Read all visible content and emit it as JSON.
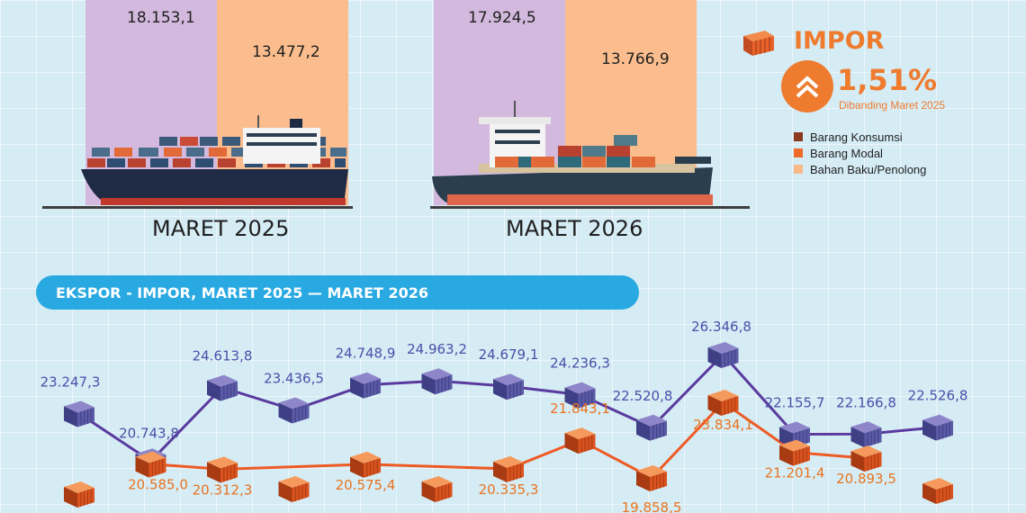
{
  "top_section": {
    "groups": [
      {
        "period": "MARET 2025",
        "values": [
          "18.153,1",
          "13.477,2"
        ]
      },
      {
        "period": "MARET 2026",
        "values": [
          "17.924,5",
          "13.766,9"
        ]
      }
    ],
    "colors": {
      "bar1": "#d2b9dd",
      "bar2": "#fbbd8e"
    }
  },
  "impor_panel": {
    "title": "IMPOR",
    "change": "1,51%",
    "comparison": "Dibanding Maret 2025",
    "icon": "chevrons-up-icon",
    "legend": [
      {
        "label": "Barang Konsumsi",
        "color": "#8b3a1e"
      },
      {
        "label": "Barang Modal",
        "color": "#ee6a2b"
      },
      {
        "label": "Bahan Baku/Penolong",
        "color": "#f9b98a"
      }
    ]
  },
  "banner": {
    "title": "EKSPOR - IMPOR, MARET 2025 — MARET 2026"
  },
  "chart_data": {
    "type": "line",
    "series": [
      {
        "color": "#5a3a9e",
        "values": [
          23247.3,
          20743.8,
          24613.8,
          23436.5,
          24748.9,
          24963.2,
          24679.1,
          24236.3,
          22520.8,
          26346.8,
          22155.7,
          22166.8,
          22526.8
        ],
        "labels": [
          "23.247,3",
          "20.743,8",
          "24.613,8",
          "23.436,5",
          "24.748,9",
          "24.963,2",
          "24.679,1",
          "24.236,3",
          "22.520,8",
          "26.346,8",
          "22.155,7",
          "22.166,8",
          "22.526,8"
        ]
      },
      {
        "color": "#ee5a24",
        "values": [
          null,
          20585.0,
          20312.3,
          null,
          20575.4,
          null,
          20335.3,
          21843.1,
          19858.5,
          23834.1,
          21201.4,
          20893.5,
          null
        ],
        "labels": [
          "",
          "20.585,0",
          "20.312,3",
          "",
          "20.575,4",
          "",
          "20.335,3",
          "21.843,1",
          "19.858,5",
          "23.834,1",
          "21.201,4",
          "20.893,5",
          ""
        ]
      }
    ]
  }
}
